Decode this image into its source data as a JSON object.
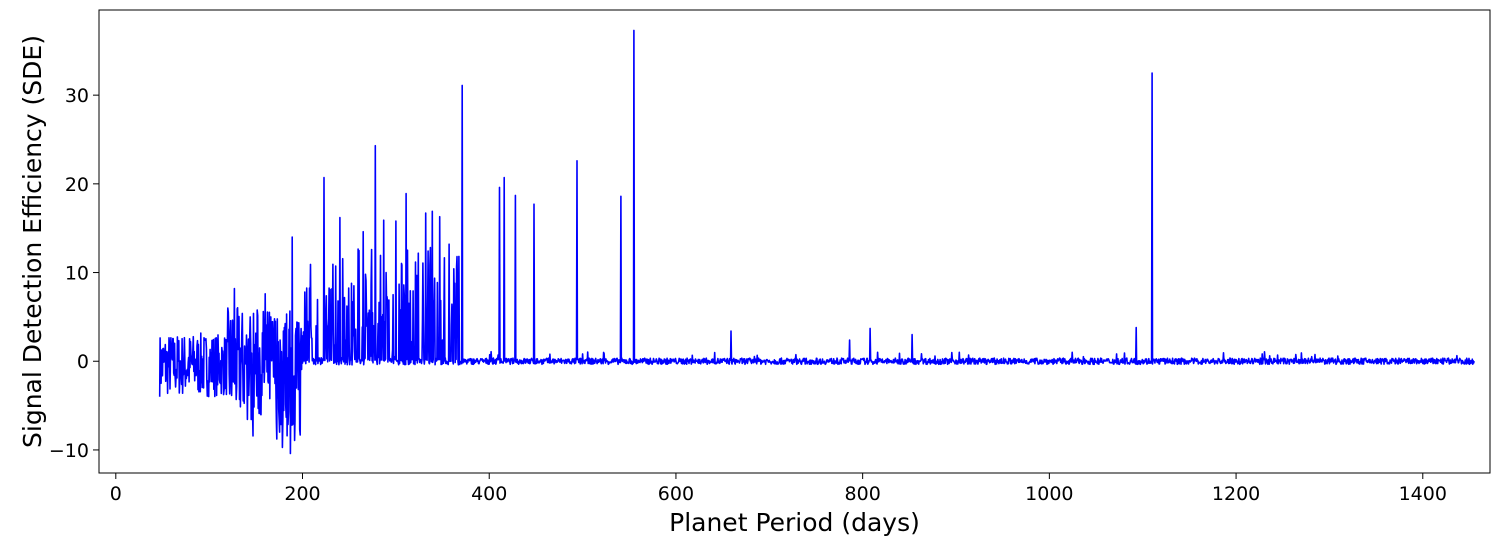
{
  "chart_data": {
    "type": "line",
    "title": "",
    "xlabel": "Planet Period (days)",
    "ylabel": "Signal Detection Efficiency (SDE)",
    "xlim": [
      -18,
      1472
    ],
    "ylim": [
      -12.6,
      39.6
    ],
    "xticks": [
      0,
      200,
      400,
      600,
      800,
      1000,
      1200,
      1400
    ],
    "yticks": [
      -10,
      0,
      10,
      20,
      30
    ],
    "grid": false,
    "legend": "none",
    "series": [
      {
        "color": "#0000ff",
        "x_range": [
          47,
          1455
        ],
        "peaks": [
          {
            "x": 127,
            "y": 8.2
          },
          {
            "x": 160,
            "y": 7.6
          },
          {
            "x": 189,
            "y": 14.0
          },
          {
            "x": 223,
            "y": 20.7
          },
          {
            "x": 240,
            "y": 16.2
          },
          {
            "x": 265,
            "y": 14.6
          },
          {
            "x": 278,
            "y": 24.3
          },
          {
            "x": 287,
            "y": 15.9
          },
          {
            "x": 300,
            "y": 15.8
          },
          {
            "x": 311,
            "y": 18.9
          },
          {
            "x": 332,
            "y": 16.7
          },
          {
            "x": 339,
            "y": 16.9
          },
          {
            "x": 347,
            "y": 16.3
          },
          {
            "x": 357,
            "y": 13.2
          },
          {
            "x": 371,
            "y": 31.1
          },
          {
            "x": 411,
            "y": 19.6
          },
          {
            "x": 416,
            "y": 20.7
          },
          {
            "x": 428,
            "y": 18.7
          },
          {
            "x": 448,
            "y": 17.7
          },
          {
            "x": 494,
            "y": 22.6
          },
          {
            "x": 541,
            "y": 18.6
          },
          {
            "x": 555,
            "y": 37.3
          },
          {
            "x": 659,
            "y": 3.4
          },
          {
            "x": 786,
            "y": 2.4
          },
          {
            "x": 808,
            "y": 3.7
          },
          {
            "x": 853,
            "y": 3.0
          },
          {
            "x": 1093,
            "y": 3.8
          },
          {
            "x": 1110,
            "y": 32.5
          }
        ],
        "minimum": {
          "x": 187,
          "y": -10.4
        }
      }
    ]
  }
}
